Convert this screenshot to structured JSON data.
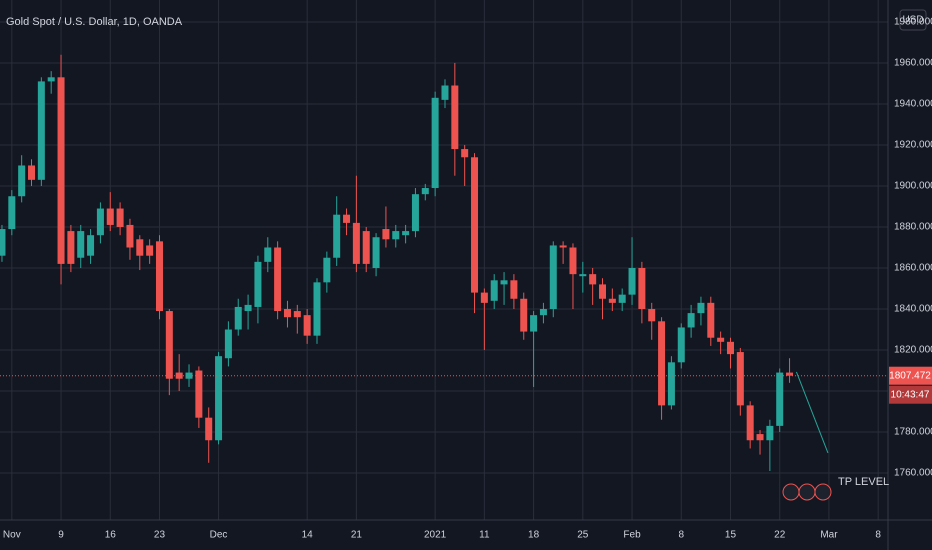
{
  "chart_data": {
    "type": "candlestick",
    "title": "Gold Spot / U.S. Dollar, 1D, OANDA",
    "currency": "USD",
    "x": [
      0,
      1,
      2,
      3,
      4,
      5,
      6,
      7,
      8,
      9,
      10,
      11,
      12,
      13,
      14,
      15,
      16,
      17,
      18,
      19,
      20,
      21,
      22,
      23,
      24,
      25,
      26,
      27,
      28,
      29,
      30,
      31,
      32,
      33,
      34,
      35,
      36,
      37,
      38,
      39,
      40,
      41,
      42,
      43,
      44,
      45,
      46,
      47,
      48,
      49,
      50,
      51,
      52,
      53,
      54,
      55,
      56,
      57,
      58,
      59,
      60,
      61,
      62,
      63,
      64,
      65,
      66,
      67,
      68,
      69,
      70,
      71,
      72,
      73,
      74,
      75,
      76,
      77,
      78,
      79,
      80
    ],
    "open": [
      1866,
      1879,
      1895,
      1910,
      1903,
      1951,
      1953,
      1878,
      1865,
      1866,
      1876,
      1889,
      1889,
      1881,
      1874,
      1871,
      1873,
      1839,
      1809,
      1806,
      1810,
      1787,
      1776,
      1816,
      1830,
      1839,
      1841,
      1863,
      1870,
      1840,
      1839,
      1837,
      1827,
      1853,
      1865,
      1886,
      1882,
      1878,
      1860,
      1879,
      1874,
      1876,
      1878,
      1896,
      1899,
      1942,
      1949,
      1918,
      1914,
      1848,
      1844,
      1852,
      1854,
      1845,
      1829,
      1837,
      1840,
      1871,
      1870,
      1856,
      1857,
      1852,
      1845,
      1843,
      1847,
      1860,
      1840,
      1834,
      1793,
      1814,
      1831,
      1838,
      1843,
      1826,
      1824,
      1819,
      1793,
      1779,
      1776,
      1783,
      1809
    ],
    "high": [
      1881,
      1898,
      1915,
      1913,
      1953,
      1956,
      1964,
      1881,
      1881,
      1879,
      1892,
      1897,
      1892,
      1884,
      1876,
      1874,
      1876,
      1840,
      1818,
      1813,
      1812,
      1792,
      1819,
      1834,
      1845,
      1847,
      1866,
      1875,
      1873,
      1844,
      1842,
      1840,
      1855,
      1868,
      1895,
      1889,
      1905,
      1880,
      1877,
      1890,
      1881,
      1881,
      1899,
      1901,
      1946,
      1952,
      1960,
      1920,
      1916,
      1850,
      1857,
      1858,
      1857,
      1848,
      1839,
      1843,
      1873,
      1873,
      1872,
      1863,
      1860,
      1855,
      1850,
      1850,
      1875,
      1863,
      1843,
      1836,
      1817,
      1833,
      1842,
      1846,
      1846,
      1829,
      1826,
      1821,
      1795,
      1781,
      1786,
      1811,
      1816
    ],
    "low": [
      1863,
      1876,
      1892,
      1900,
      1900,
      1945,
      1852,
      1858,
      1860,
      1862,
      1872,
      1878,
      1876,
      1864,
      1859,
      1862,
      1835,
      1798,
      1800,
      1802,
      1782,
      1765,
      1774,
      1812,
      1827,
      1830,
      1833,
      1858,
      1835,
      1831,
      1828,
      1823,
      1823,
      1848,
      1861,
      1876,
      1858,
      1858,
      1856,
      1870,
      1870,
      1872,
      1875,
      1893,
      1895,
      1938,
      1905,
      1900,
      1838,
      1820,
      1840,
      1842,
      1840,
      1825,
      1802,
      1833,
      1836,
      1862,
      1840,
      1848,
      1842,
      1835,
      1839,
      1839,
      1842,
      1833,
      1825,
      1786,
      1791,
      1811,
      1826,
      1832,
      1822,
      1818,
      1811,
      1788,
      1772,
      1769,
      1761,
      1780,
      1804
    ],
    "close": [
      1879,
      1895,
      1910,
      1903,
      1951,
      1953,
      1862,
      1862,
      1878,
      1876,
      1889,
      1881,
      1880,
      1870,
      1866,
      1866,
      1839,
      1806,
      1806,
      1809,
      1787,
      1776,
      1817,
      1830,
      1841,
      1842,
      1863,
      1870,
      1839,
      1836,
      1836,
      1827,
      1853,
      1865,
      1886,
      1882,
      1862,
      1862,
      1875,
      1874,
      1878,
      1878,
      1896,
      1899,
      1943,
      1949,
      1918,
      1914,
      1848,
      1843,
      1854,
      1854,
      1845,
      1829,
      1837,
      1840,
      1871,
      1870,
      1857,
      1857,
      1852,
      1845,
      1843,
      1847,
      1860,
      1840,
      1834,
      1793,
      1814,
      1831,
      1838,
      1843,
      1826,
      1824,
      1818,
      1793,
      1776,
      1776,
      1783,
      1809,
      1807.472
    ],
    "up_color": "#26a69a",
    "down_color": "#ef5350",
    "xlim": [
      -0.2,
      90
    ],
    "xticks": [
      {
        "value": 1,
        "label": "Nov"
      },
      {
        "value": 6,
        "label": "9"
      },
      {
        "value": 11,
        "label": "16"
      },
      {
        "value": 16,
        "label": "23"
      },
      {
        "value": 22,
        "label": "Dec"
      },
      {
        "value": 31,
        "label": "14"
      },
      {
        "value": 36,
        "label": "21"
      },
      {
        "value": 44,
        "label": "2021"
      },
      {
        "value": 49,
        "label": "11"
      },
      {
        "value": 54,
        "label": "18"
      },
      {
        "value": 59,
        "label": "25"
      },
      {
        "value": 64,
        "label": "Feb"
      },
      {
        "value": 69,
        "label": "8"
      },
      {
        "value": 74,
        "label": "15"
      },
      {
        "value": 79,
        "label": "22"
      },
      {
        "value": 84,
        "label": "Mar"
      },
      {
        "value": 89,
        "label": "8"
      }
    ],
    "ylim": [
      1737.1,
      1990.7
    ],
    "yticks": [
      {
        "value": 1760,
        "label": "1760.000"
      },
      {
        "value": 1780,
        "label": "1780.000"
      },
      {
        "value": 1800,
        "label": "1800.000"
      },
      {
        "value": 1820,
        "label": "1820.000"
      },
      {
        "value": 1840,
        "label": "1840.000"
      },
      {
        "value": 1860,
        "label": "1860.000"
      },
      {
        "value": 1880,
        "label": "1880.000"
      },
      {
        "value": 1900,
        "label": "1900.000"
      },
      {
        "value": 1920,
        "label": "1920.000"
      },
      {
        "value": 1940,
        "label": "1940.000"
      },
      {
        "value": 1960,
        "label": "1960.000"
      },
      {
        "value": 1980,
        "label": "1980.000"
      }
    ],
    "grid": true,
    "last_price": 1807.472,
    "countdown": "10:43:47",
    "trend_line": {
      "x": [
        80.7,
        83.9
      ],
      "y": [
        1809.3,
        1769.8
      ],
      "color": "#26a69a"
    },
    "annotation": "TP LEVEL"
  }
}
